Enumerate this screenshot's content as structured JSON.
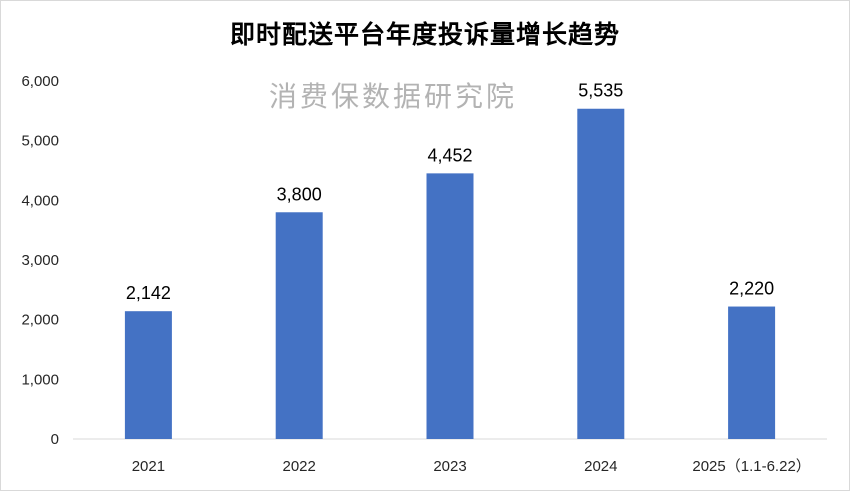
{
  "chart_data": {
    "type": "bar",
    "title": "即时配送平台年度投诉量增长趋势",
    "watermark": "消费保数据研究院",
    "categories": [
      "2021",
      "2022",
      "2023",
      "2024",
      "2025（1.1-6.22）"
    ],
    "values": [
      2142,
      3800,
      4452,
      5535,
      2220
    ],
    "data_labels": [
      "2,142",
      "3,800",
      "4,452",
      "5,535",
      "2,220"
    ],
    "y_ticks": [
      "0",
      "1,000",
      "2,000",
      "3,000",
      "4,000",
      "5,000",
      "6,000"
    ],
    "ylim": [
      0,
      6000
    ],
    "xlabel": "",
    "ylabel": "",
    "grid": false,
    "legend": "none",
    "bar_color": "#4472C4"
  }
}
